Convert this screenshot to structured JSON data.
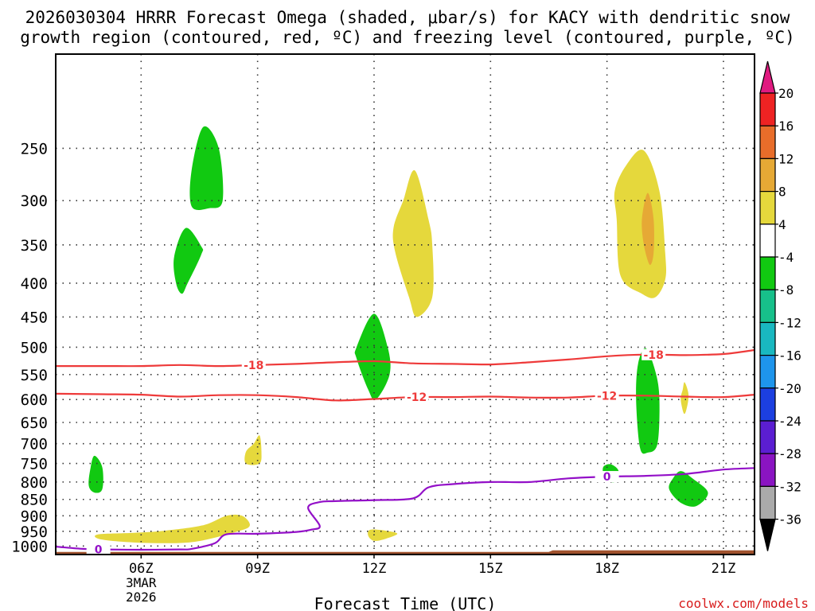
{
  "chart_data": {
    "type": "contour-heatmap",
    "title_line1": "2026030304 HRRR Forecast Omega (shaded, μbar/s) for KACY with dendritic snow",
    "title_line2": "growth region (contoured, red, ºC) and freezing level (contoured, purple, ºC)",
    "xlabel": "Forecast Time (UTC)",
    "credit": "coolwx.com/models",
    "x_range": [
      3.8,
      21.8
    ],
    "y_range": [
      1030,
      180
    ],
    "y_ticks": [
      250,
      300,
      350,
      400,
      450,
      500,
      550,
      600,
      650,
      700,
      750,
      800,
      850,
      900,
      950,
      1000
    ],
    "x_ticks": [
      {
        "t": 6,
        "label": "06Z",
        "sub1": "3MAR",
        "sub2": "2026"
      },
      {
        "t": 9,
        "label": "09Z",
        "sub1": "",
        "sub2": ""
      },
      {
        "t": 12,
        "label": "12Z",
        "sub1": "",
        "sub2": ""
      },
      {
        "t": 15,
        "label": "15Z",
        "sub1": "",
        "sub2": ""
      },
      {
        "t": 18,
        "label": "18Z",
        "sub1": "",
        "sub2": ""
      },
      {
        "t": 21,
        "label": "21Z",
        "sub1": "",
        "sub2": ""
      }
    ],
    "colorbar": {
      "labels": [
        "20",
        "16",
        "12",
        "8",
        "4",
        "-4",
        "-8",
        "-12",
        "-16",
        "-20",
        "-24",
        "-28",
        "-32",
        "-36"
      ],
      "colors": [
        "#ee2323",
        "#e86d2a",
        "#e6a935",
        "#e5d83c",
        "#ffffff",
        "#11c911",
        "#17c08a",
        "#19b8c0",
        "#1e95ec",
        "#1c3fe0",
        "#5b1ed2",
        "#8a14c2",
        "#aaaaaa"
      ],
      "top_arrow_color": "#e01a80",
      "bottom_arrow_color": "#000000"
    },
    "omega_regions": [
      {
        "name": "green-upper-07z",
        "color": "#11c911",
        "points": [
          [
            7.6,
            232
          ],
          [
            8.0,
            250
          ],
          [
            8.1,
            300
          ],
          [
            7.75,
            308
          ],
          [
            7.3,
            306
          ],
          [
            7.3,
            270
          ]
        ]
      },
      {
        "name": "green-mid-07z",
        "color": "#11c911",
        "points": [
          [
            7.15,
            330
          ],
          [
            7.55,
            352
          ],
          [
            7.55,
            362
          ],
          [
            7.2,
            400
          ],
          [
            7.05,
            415
          ],
          [
            6.9,
            400
          ],
          [
            6.85,
            365
          ]
        ]
      },
      {
        "name": "green-500-12z",
        "color": "#11c911",
        "points": [
          [
            12.0,
            445
          ],
          [
            12.35,
            500
          ],
          [
            12.4,
            550
          ],
          [
            12.05,
            600
          ],
          [
            11.85,
            580
          ],
          [
            11.55,
            520
          ],
          [
            11.55,
            500
          ]
        ]
      },
      {
        "name": "green-600-19z",
        "color": "#11c911",
        "points": [
          [
            19.0,
            502
          ],
          [
            19.25,
            545
          ],
          [
            19.35,
            600
          ],
          [
            19.3,
            700
          ],
          [
            19.05,
            722
          ],
          [
            18.85,
            710
          ],
          [
            18.75,
            600
          ],
          [
            18.8,
            530
          ]
        ]
      },
      {
        "name": "green-800-20z",
        "color": "#11c911",
        "points": [
          [
            19.7,
            790
          ],
          [
            19.9,
            770
          ],
          [
            20.2,
            790
          ],
          [
            20.6,
            830
          ],
          [
            20.3,
            870
          ],
          [
            19.9,
            860
          ],
          [
            19.6,
            820
          ]
        ]
      },
      {
        "name": "green-780-18z",
        "color": "#11c911",
        "points": [
          [
            17.9,
            760
          ],
          [
            18.1,
            752
          ],
          [
            18.3,
            770
          ],
          [
            18.2,
            800
          ],
          [
            17.95,
            790
          ]
        ]
      },
      {
        "name": "green-780-05z",
        "color": "#11c911",
        "points": [
          [
            4.8,
            730
          ],
          [
            5.0,
            760
          ],
          [
            5.0,
            820
          ],
          [
            4.8,
            830
          ],
          [
            4.65,
            810
          ],
          [
            4.7,
            760
          ]
        ]
      },
      {
        "name": "yellow-300-19z",
        "color": "#e5d83c",
        "points": [
          [
            18.95,
            252
          ],
          [
            19.35,
            290
          ],
          [
            19.5,
            360
          ],
          [
            19.5,
            395
          ],
          [
            19.25,
            420
          ],
          [
            18.9,
            415
          ],
          [
            18.35,
            390
          ],
          [
            18.25,
            320
          ],
          [
            18.2,
            290
          ],
          [
            18.5,
            265
          ]
        ]
      },
      {
        "name": "orange-330-19z",
        "color": "#e6a935",
        "points": [
          [
            19.05,
            292
          ],
          [
            19.2,
            320
          ],
          [
            19.2,
            360
          ],
          [
            19.1,
            375
          ],
          [
            18.95,
            350
          ],
          [
            18.9,
            320
          ]
        ]
      },
      {
        "name": "yellow-350-13z",
        "color": "#e5d83c",
        "points": [
          [
            13.05,
            270
          ],
          [
            13.4,
            320
          ],
          [
            13.5,
            350
          ],
          [
            13.5,
            420
          ],
          [
            13.1,
            450
          ],
          [
            12.9,
            420
          ],
          [
            12.55,
            360
          ],
          [
            12.5,
            330
          ],
          [
            12.75,
            300
          ]
        ]
      },
      {
        "name": "yellow-720-09z",
        "color": "#e5d83c",
        "points": [
          [
            9.05,
            680
          ],
          [
            9.1,
            720
          ],
          [
            9.05,
            750
          ],
          [
            8.7,
            750
          ],
          [
            8.7,
            720
          ],
          [
            8.9,
            700
          ]
        ]
      },
      {
        "name": "yellow-600-20z",
        "color": "#e5d83c",
        "points": [
          [
            20.0,
            565
          ],
          [
            20.1,
            590
          ],
          [
            20.05,
            620
          ],
          [
            19.98,
            630
          ],
          [
            19.9,
            600
          ],
          [
            19.95,
            580
          ]
        ]
      },
      {
        "name": "yellow-950-12z",
        "color": "#e5d83c",
        "points": [
          [
            11.9,
            945
          ],
          [
            12.3,
            948
          ],
          [
            12.6,
            958
          ],
          [
            12.3,
            975
          ],
          [
            12.0,
            982
          ],
          [
            11.85,
            965
          ]
        ]
      },
      {
        "name": "yellow-950-07z",
        "color": "#e5d83c",
        "points": [
          [
            4.9,
            960
          ],
          [
            5.8,
            955
          ],
          [
            6.6,
            948
          ],
          [
            7.6,
            930
          ],
          [
            8.2,
            900
          ],
          [
            8.6,
            900
          ],
          [
            8.8,
            930
          ],
          [
            8.5,
            950
          ],
          [
            7.4,
            985
          ],
          [
            6.4,
            990
          ],
          [
            5.5,
            985
          ],
          [
            4.9,
            975
          ]
        ]
      }
    ],
    "isotherms": [
      {
        "label": "-18",
        "color": "#ee3a3a",
        "label_t": 8.9,
        "points": [
          [
            3.8,
            534
          ],
          [
            5,
            534
          ],
          [
            6,
            534
          ],
          [
            7,
            532
          ],
          [
            8,
            534
          ],
          [
            9,
            532
          ],
          [
            10,
            530
          ],
          [
            11,
            527
          ],
          [
            12,
            525
          ],
          [
            13,
            529
          ],
          [
            14,
            530
          ],
          [
            15,
            531
          ],
          [
            16,
            527
          ],
          [
            17,
            522
          ],
          [
            18,
            516
          ],
          [
            19,
            513
          ],
          [
            20,
            514
          ],
          [
            21,
            512
          ],
          [
            21.8,
            505
          ]
        ]
      },
      {
        "label": "-18",
        "color": "#ee3a3a",
        "label_t": 19.2,
        "points": []
      },
      {
        "label": "-12",
        "color": "#ee3a3a",
        "label_t": 13.1,
        "points": [
          [
            3.8,
            588
          ],
          [
            5,
            589
          ],
          [
            6,
            590
          ],
          [
            7,
            594
          ],
          [
            8,
            591
          ],
          [
            9,
            591
          ],
          [
            10,
            595
          ],
          [
            11,
            602
          ],
          [
            12,
            599
          ],
          [
            13,
            595
          ],
          [
            14,
            595
          ],
          [
            15,
            594
          ],
          [
            16,
            596
          ],
          [
            17,
            596
          ],
          [
            18,
            592
          ],
          [
            19,
            592
          ],
          [
            20,
            594
          ],
          [
            21,
            595
          ],
          [
            21.8,
            590
          ]
        ]
      },
      {
        "label": "-12",
        "color": "#ee3a3a",
        "label_t": 18.0,
        "points": []
      },
      {
        "label": "0",
        "color": "#9310c8",
        "label_t": 4.9,
        "points": [
          [
            3.8,
            1002
          ],
          [
            4.5,
            1010
          ],
          [
            5,
            1012
          ],
          [
            6,
            1013
          ],
          [
            7,
            1012
          ],
          [
            7.3,
            1010
          ],
          [
            7.9,
            990
          ],
          [
            8.2,
            960
          ],
          [
            9,
            958
          ],
          [
            10,
            952
          ],
          [
            10.4,
            944
          ],
          [
            10.6,
            932
          ],
          [
            10.3,
            875
          ],
          [
            10.6,
            858
          ],
          [
            11,
            855
          ],
          [
            12,
            852
          ],
          [
            13,
            847
          ],
          [
            13.4,
            815
          ],
          [
            14,
            806
          ],
          [
            15,
            800
          ],
          [
            16,
            800
          ],
          [
            17,
            790
          ],
          [
            18,
            785
          ],
          [
            19,
            783
          ],
          [
            20,
            778
          ],
          [
            21,
            766
          ],
          [
            21.8,
            762
          ]
        ]
      },
      {
        "label": "0",
        "color": "#9310c8",
        "label_t": 18.0,
        "points": []
      }
    ],
    "terrain": {
      "color": "#a0522d",
      "top_pressure": 1018,
      "rise_t": 16.5
    }
  }
}
